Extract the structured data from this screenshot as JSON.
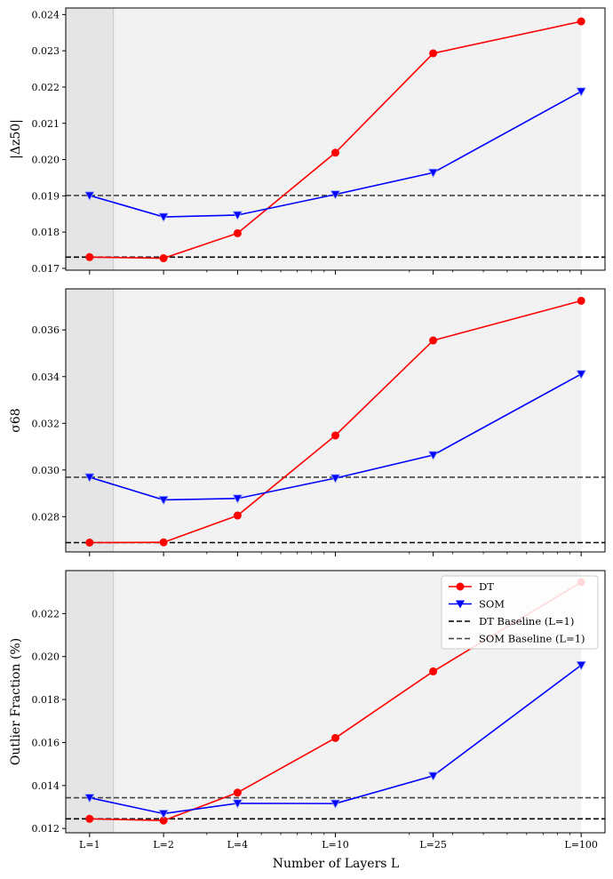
{
  "chart_data": {
    "type": "line",
    "shared_x": {
      "values": [
        1,
        2,
        4,
        10,
        25,
        100
      ],
      "tick_labels": [
        "L=1",
        "L=2",
        "L=4",
        "L=10",
        "L=25",
        "L=100"
      ],
      "scale": "log",
      "label": "Number of Layers L",
      "xlim": [
        0.8,
        125
      ]
    },
    "shaded_regions": [
      {
        "from": 0.8,
        "to": 1.25,
        "color": "#e5e5e5"
      },
      {
        "from": 1.25,
        "to": 100,
        "color": "#f2f2f2"
      }
    ],
    "legend": {
      "placement": "upper right of bottom panel",
      "entries": [
        "DT",
        "SOM",
        "DT Baseline (L=1)",
        "SOM Baseline (L=1)"
      ]
    },
    "colors": {
      "DT": "#ff0000",
      "SOM": "#0000ff",
      "DT_baseline": "#000000",
      "SOM_baseline": "#444444"
    },
    "panels": [
      {
        "ylabel": "|Δz50|",
        "ylim": [
          0.01695,
          0.02418
        ],
        "yticks": [
          0.017,
          0.018,
          0.019,
          0.02,
          0.021,
          0.022,
          0.023,
          0.024
        ],
        "ytick_labels": [
          "0.017",
          "0.018",
          "0.019",
          "0.020",
          "0.021",
          "0.022",
          "0.023",
          "0.024"
        ],
        "series": [
          {
            "name": "DT",
            "values": [
              0.01731,
              0.01728,
              0.01797,
              0.02019,
              0.02293,
              0.02381
            ]
          },
          {
            "name": "SOM",
            "values": [
              0.01901,
              0.01842,
              0.01847,
              0.01904,
              0.01964,
              0.02188
            ]
          }
        ],
        "baselines": [
          {
            "name": "DT Baseline (L=1)",
            "value": 0.01731
          },
          {
            "name": "SOM Baseline (L=1)",
            "value": 0.01901
          }
        ]
      },
      {
        "ylabel": "σ68",
        "ylim": [
          0.02649,
          0.03776
        ],
        "yticks": [
          0.028,
          0.03,
          0.032,
          0.034,
          0.036
        ],
        "ytick_labels": [
          "0.028",
          "0.030",
          "0.032",
          "0.034",
          "0.036"
        ],
        "series": [
          {
            "name": "DT",
            "values": [
              0.02689,
              0.0269,
              0.02805,
              0.03148,
              0.03555,
              0.03725
            ]
          },
          {
            "name": "SOM",
            "values": [
              0.02969,
              0.02872,
              0.02878,
              0.02965,
              0.03064,
              0.03411
            ]
          }
        ],
        "baselines": [
          {
            "name": "DT Baseline (L=1)",
            "value": 0.02689
          },
          {
            "name": "SOM Baseline (L=1)",
            "value": 0.02969
          }
        ]
      },
      {
        "ylabel": "Outlier Fraction (%)",
        "ylim": [
          0.0118,
          0.024
        ],
        "yticks": [
          0.012,
          0.014,
          0.016,
          0.018,
          0.02,
          0.022
        ],
        "ytick_labels": [
          "0.012",
          "0.014",
          "0.016",
          "0.018",
          "0.020",
          "0.022"
        ],
        "series": [
          {
            "name": "DT",
            "values": [
              0.01245,
              0.01237,
              0.01367,
              0.01621,
              0.01931,
              0.02346
            ]
          },
          {
            "name": "SOM",
            "values": [
              0.01343,
              0.01269,
              0.01317,
              0.01316,
              0.01445,
              0.0196
            ]
          }
        ],
        "baselines": [
          {
            "name": "DT Baseline (L=1)",
            "value": 0.01245
          },
          {
            "name": "SOM Baseline (L=1)",
            "value": 0.01343
          }
        ]
      }
    ]
  }
}
